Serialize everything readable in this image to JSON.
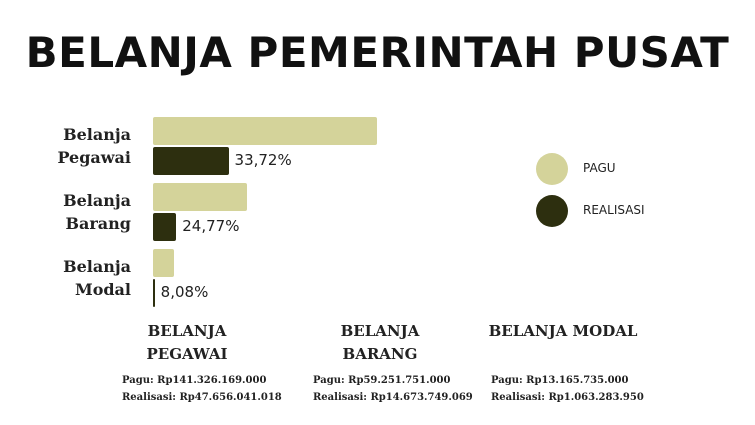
{
  "title": "BELANJA PEMERINTAH PUSAT",
  "chart_data": {
    "type": "bar",
    "orientation": "horizontal",
    "categories": [
      "Belanja Pegawai",
      "Belanja Barang",
      "Belanja Modal"
    ],
    "series": [
      {
        "name": "PAGU",
        "color": "#d4d39a",
        "values": [
          141326169000,
          59251751000,
          13165735000
        ]
      },
      {
        "name": "REALISASI",
        "color": "#2d2f0f",
        "values": [
          47656041018,
          14673749069,
          1063283950
        ]
      }
    ],
    "realization_percent": [
      33.72,
      24.77,
      8.08
    ],
    "realization_percent_labels": [
      "33,72%",
      "24,77%",
      "8,08%"
    ]
  },
  "details": [
    {
      "title": "BELANJA PEGAWAI",
      "pagu": "Pagu: Rp141.326.169.000",
      "realisasi": "Realisasi: Rp47.656.041.018"
    },
    {
      "title": "BELANJA BARANG",
      "pagu": "Pagu: Rp59.251.751.000",
      "realisasi": "Realisasi: Rp14.673.749.069"
    },
    {
      "title": "BELANJA MODAL",
      "pagu": "Pagu: Rp13.165.735.000",
      "realisasi": "Realisasi: Rp1.063.283.950"
    }
  ]
}
